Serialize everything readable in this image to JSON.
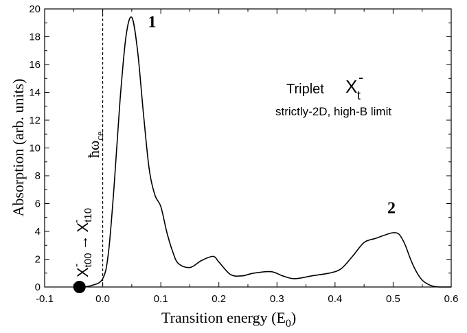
{
  "chart_data": {
    "type": "line",
    "title": "",
    "xlabel": "Transition energy (E",
    "xlabel_sub": "0",
    "xlabel_end": ")",
    "ylabel": "Absorption (arb. units)",
    "xlim": [
      -0.1,
      0.6
    ],
    "ylim": [
      0,
      20
    ],
    "x_ticks": [
      -0.1,
      0.0,
      0.1,
      0.2,
      0.3,
      0.4,
      0.5,
      0.6
    ],
    "x_tick_labels": [
      "-0.1",
      "0.0",
      "0.1",
      "0.2",
      "0.3",
      "0.4",
      "0.5",
      "0.6"
    ],
    "y_ticks": [
      0,
      2,
      4,
      6,
      8,
      10,
      12,
      14,
      16,
      18,
      20
    ],
    "y_tick_labels": [
      "0",
      "2",
      "4",
      "6",
      "8",
      "10",
      "12",
      "14",
      "16",
      "18",
      "20"
    ],
    "grid": false,
    "series": [
      {
        "x": [
          -0.04,
          -0.02,
          0.0,
          0.01,
          0.02,
          0.03,
          0.04,
          0.05,
          0.06,
          0.07,
          0.08,
          0.09,
          0.1,
          0.11,
          0.12,
          0.13,
          0.15,
          0.17,
          0.19,
          0.2,
          0.22,
          0.24,
          0.26,
          0.29,
          0.31,
          0.33,
          0.36,
          0.39,
          0.41,
          0.43,
          0.45,
          0.47,
          0.49,
          0.5,
          0.51,
          0.52,
          0.53,
          0.54,
          0.55,
          0.56,
          0.57,
          0.58,
          0.6
        ],
        "y": [
          0,
          0.1,
          0.6,
          2.5,
          7.5,
          13.5,
          18.0,
          19.4,
          17.0,
          12.5,
          8.5,
          6.6,
          5.8,
          4.0,
          2.6,
          1.7,
          1.4,
          1.9,
          2.2,
          1.8,
          0.9,
          0.8,
          1.0,
          1.1,
          0.8,
          0.6,
          0.8,
          1.0,
          1.3,
          2.2,
          3.2,
          3.5,
          3.8,
          3.9,
          3.8,
          3.1,
          2.0,
          1.1,
          0.5,
          0.2,
          0.05,
          0,
          0
        ]
      }
    ],
    "vline": {
      "x": 0.0,
      "style": "dashed"
    },
    "marker": {
      "x": -0.04,
      "y": 0,
      "style": "filled-circle"
    },
    "annotations": {
      "peak1": {
        "text": "1",
        "x": 0.078,
        "y": 18.7
      },
      "peak2": {
        "text": "2",
        "x": 0.49,
        "y": 5.3
      },
      "hbar_omega": {
        "text": "ħω",
        "sub": "ce"
      },
      "transition": {
        "from_base": "X",
        "from_sup": "-",
        "from_sub": "t00",
        "arrow": "→",
        "to_base": "X",
        "to_sup": "-",
        "to_sub": "t10"
      },
      "triplet": {
        "text": "Triplet",
        "symbol": "X",
        "symbol_sup": "-",
        "symbol_sub": "t"
      },
      "limit": {
        "text": "strictly-2D, high-B limit"
      }
    },
    "colors": {
      "line": "#000000",
      "axis": "#000000"
    }
  }
}
